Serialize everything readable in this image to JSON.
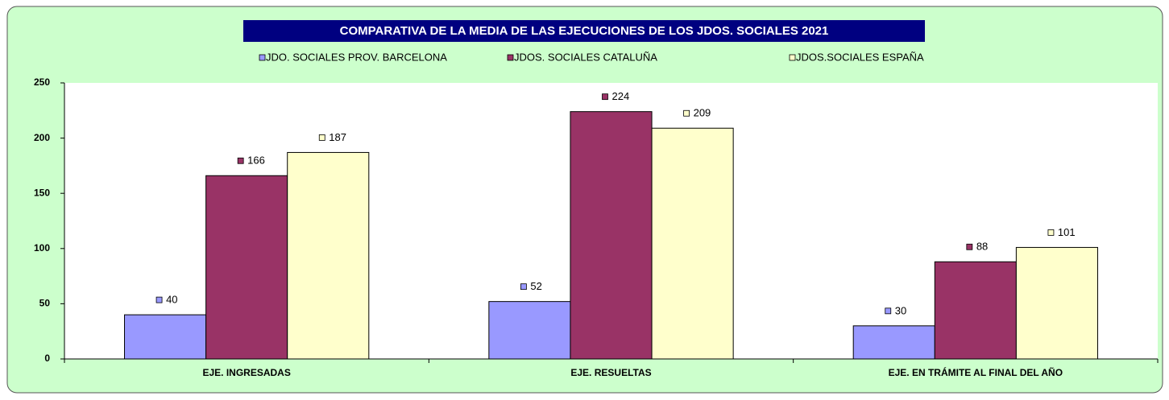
{
  "chart_data": {
    "type": "bar",
    "title": "COMPARATIVA DE LA MEDIA DE LAS EJECUCIONES  DE LOS JDOS. SOCIALES  2021",
    "categories": [
      "EJE. INGRESADAS",
      "EJE. RESUELTAS",
      "EJE. EN TRÁMITE AL FINAL DEL AÑO"
    ],
    "series": [
      {
        "name": "JDO. SOCIALES PROV. BARCELONA",
        "color": "#9999ff",
        "values": [
          40,
          52,
          30
        ]
      },
      {
        "name": "JDOS. SOCIALES CATALUÑA",
        "color": "#993366",
        "values": [
          166,
          224,
          88
        ]
      },
      {
        "name": "JDOS.SOCIALES ESPAÑA",
        "color": "#ffffcc",
        "values": [
          187,
          209,
          101
        ]
      }
    ],
    "ylim": [
      0,
      250
    ],
    "yticks": [
      0,
      50,
      100,
      150,
      200,
      250
    ],
    "legend": "top",
    "grid": false
  }
}
